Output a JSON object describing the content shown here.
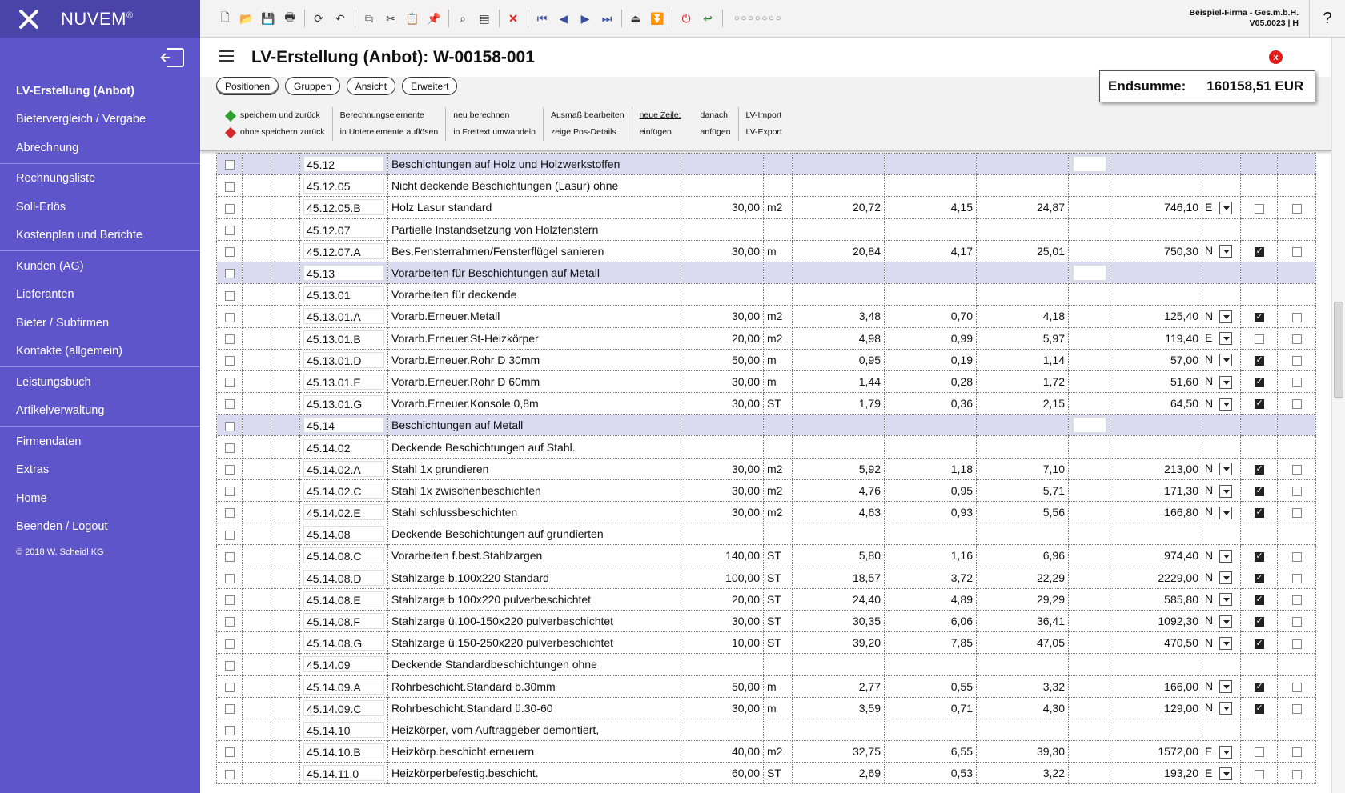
{
  "brand": {
    "name": "NUVEM",
    "reg": "®"
  },
  "sidebar": {
    "items": [
      {
        "label": "LV-Erstellung (Anbot)",
        "active": true
      },
      {
        "label": "Bietervergleich / Vergabe"
      },
      {
        "label": "Abrechnung"
      },
      {
        "sep": true
      },
      {
        "label": "Rechnungsliste"
      },
      {
        "label": "Soll-Erlös"
      },
      {
        "label": "Kostenplan und Berichte"
      },
      {
        "sep": true
      },
      {
        "label": "Kunden (AG)"
      },
      {
        "label": "Lieferanten"
      },
      {
        "label": "Bieter / Subfirmen"
      },
      {
        "label": "Kontakte (allgemein)"
      },
      {
        "sep": true
      },
      {
        "label": "Leistungsbuch"
      },
      {
        "label": "Artikelverwaltung"
      },
      {
        "sep": true
      },
      {
        "label": "Firmendaten"
      },
      {
        "label": "Extras"
      },
      {
        "label": "Home"
      },
      {
        "label": "Beenden / Logout"
      }
    ],
    "copyright": "© 2018 W. Scheidl KG"
  },
  "topbar": {
    "company": "Beispiel-Firma - Ges.m.b.H.",
    "version": "V05.0023 | H",
    "help": "?"
  },
  "header": {
    "title": "LV-Erstellung (Anbot): W-00158-001",
    "close": "x"
  },
  "tabs": [
    "Positionen",
    "Gruppen",
    "Ansicht",
    "Erweitert"
  ],
  "actions": {
    "save_back": "speichern und zurück",
    "nosave_back": "ohne speichern zurück",
    "calc1": "Berechnungselemente",
    "calc2": "in Unterelemente auflösen",
    "re1": "neu berechnen",
    "re2": "in Freitext umwandeln",
    "am1": "Ausmaß bearbeiten",
    "am2": "zeige Pos-Details",
    "nz": "neue Zeile:",
    "nz2": "einfügen",
    "da1": "danach",
    "da2": "anfügen",
    "imp": "LV-Import",
    "exp": "LV-Export",
    "green": "#2ca02c",
    "red": "#d62728"
  },
  "endsum": {
    "label": "Endsumme:",
    "value": "160158,51 EUR"
  },
  "rows": [
    {
      "oz": "45.12",
      "text": "Beschichtungen auf Holz und Holzwerkstoffen",
      "group": true
    },
    {
      "oz": "45.12.05",
      "text": "Nicht deckende Beschichtungen (Lasur) ohne"
    },
    {
      "oz": "45.12.05.B",
      "text": "Holz Lasur standard",
      "qty": "30,00",
      "unit": "m2",
      "p1": "20,72",
      "p2": "4,15",
      "ep": "24,87",
      "gp": "746,10",
      "typ": "E",
      "c1": false
    },
    {
      "oz": "45.12.07",
      "text": "Partielle Instandsetzung von Holzfenstern"
    },
    {
      "oz": "45.12.07.A",
      "text": "Bes.Fensterrahmen/Fensterflügel sanieren",
      "qty": "30,00",
      "unit": "m",
      "p1": "20,84",
      "p2": "4,17",
      "ep": "25,01",
      "gp": "750,30",
      "typ": "N",
      "c1": true
    },
    {
      "oz": "45.13",
      "text": "Vorarbeiten für Beschichtungen auf Metall",
      "group": true
    },
    {
      "oz": "45.13.01",
      "text": "Vorarbeiten für deckende"
    },
    {
      "oz": "45.13.01.A",
      "text": "Vorarb.Erneuer.Metall",
      "qty": "30,00",
      "unit": "m2",
      "p1": "3,48",
      "p2": "0,70",
      "ep": "4,18",
      "gp": "125,40",
      "typ": "N",
      "c1": true
    },
    {
      "oz": "45.13.01.B",
      "text": "Vorarb.Erneuer.St-Heizkörper",
      "qty": "20,00",
      "unit": "m2",
      "p1": "4,98",
      "p2": "0,99",
      "ep": "5,97",
      "gp": "119,40",
      "typ": "E",
      "c1": false
    },
    {
      "oz": "45.13.01.D",
      "text": "Vorarb.Erneuer.Rohr D 30mm",
      "qty": "50,00",
      "unit": "m",
      "p1": "0,95",
      "p2": "0,19",
      "ep": "1,14",
      "gp": "57,00",
      "typ": "N",
      "c1": true
    },
    {
      "oz": "45.13.01.E",
      "text": "Vorarb.Erneuer.Rohr D 60mm",
      "qty": "30,00",
      "unit": "m",
      "p1": "1,44",
      "p2": "0,28",
      "ep": "1,72",
      "gp": "51,60",
      "typ": "N",
      "c1": true
    },
    {
      "oz": "45.13.01.G",
      "text": "Vorarb.Erneuer.Konsole 0,8m",
      "qty": "30,00",
      "unit": "ST",
      "p1": "1,79",
      "p2": "0,36",
      "ep": "2,15",
      "gp": "64,50",
      "typ": "N",
      "c1": true
    },
    {
      "oz": "45.14",
      "text": "Beschichtungen auf Metall",
      "group": true
    },
    {
      "oz": "45.14.02",
      "text": "Deckende Beschichtungen auf Stahl."
    },
    {
      "oz": "45.14.02.A",
      "text": "Stahl 1x grundieren",
      "qty": "30,00",
      "unit": "m2",
      "p1": "5,92",
      "p2": "1,18",
      "ep": "7,10",
      "gp": "213,00",
      "typ": "N",
      "c1": true
    },
    {
      "oz": "45.14.02.C",
      "text": "Stahl 1x zwischenbeschichten",
      "qty": "30,00",
      "unit": "m2",
      "p1": "4,76",
      "p2": "0,95",
      "ep": "5,71",
      "gp": "171,30",
      "typ": "N",
      "c1": true
    },
    {
      "oz": "45.14.02.E",
      "text": "Stahl schlussbeschichten",
      "qty": "30,00",
      "unit": "m2",
      "p1": "4,63",
      "p2": "0,93",
      "ep": "5,56",
      "gp": "166,80",
      "typ": "N",
      "c1": true
    },
    {
      "oz": "45.14.08",
      "text": "Deckende Beschichtungen auf grundierten"
    },
    {
      "oz": "45.14.08.C",
      "text": "Vorarbeiten f.best.Stahlzargen",
      "qty": "140,00",
      "unit": "ST",
      "p1": "5,80",
      "p2": "1,16",
      "ep": "6,96",
      "gp": "974,40",
      "typ": "N",
      "c1": true
    },
    {
      "oz": "45.14.08.D",
      "text": "Stahlzarge b.100x220 Standard",
      "qty": "100,00",
      "unit": "ST",
      "p1": "18,57",
      "p2": "3,72",
      "ep": "22,29",
      "gp": "2229,00",
      "typ": "N",
      "c1": true
    },
    {
      "oz": "45.14.08.E",
      "text": "Stahlzarge b.100x220 pulverbeschichtet",
      "qty": "20,00",
      "unit": "ST",
      "p1": "24,40",
      "p2": "4,89",
      "ep": "29,29",
      "gp": "585,80",
      "typ": "N",
      "c1": true
    },
    {
      "oz": "45.14.08.F",
      "text": "Stahlzarge ü.100-150x220 pulverbeschichtet",
      "qty": "30,00",
      "unit": "ST",
      "p1": "30,35",
      "p2": "6,06",
      "ep": "36,41",
      "gp": "1092,30",
      "typ": "N",
      "c1": true
    },
    {
      "oz": "45.14.08.G",
      "text": "Stahlzarge ü.150-250x220 pulverbeschichtet",
      "qty": "10,00",
      "unit": "ST",
      "p1": "39,20",
      "p2": "7,85",
      "ep": "47,05",
      "gp": "470,50",
      "typ": "N",
      "c1": true
    },
    {
      "oz": "45.14.09",
      "text": "Deckende Standardbeschichtungen ohne"
    },
    {
      "oz": "45.14.09.A",
      "text": "Rohrbeschicht.Standard b.30mm",
      "qty": "50,00",
      "unit": "m",
      "p1": "2,77",
      "p2": "0,55",
      "ep": "3,32",
      "gp": "166,00",
      "typ": "N",
      "c1": true
    },
    {
      "oz": "45.14.09.C",
      "text": "Rohrbeschicht.Standard ü.30-60",
      "qty": "30,00",
      "unit": "m",
      "p1": "3,59",
      "p2": "0,71",
      "ep": "4,30",
      "gp": "129,00",
      "typ": "N",
      "c1": true
    },
    {
      "oz": "45.14.10",
      "text": "Heizkörper, vom Auftraggeber demontiert,"
    },
    {
      "oz": "45.14.10.B",
      "text": "Heizkörp.beschicht.erneuern",
      "qty": "40,00",
      "unit": "m2",
      "p1": "32,75",
      "p2": "6,55",
      "ep": "39,30",
      "gp": "1572,00",
      "typ": "E",
      "c1": false
    },
    {
      "oz": "45.14.11.0",
      "text": "Heizkörperbefestig.beschicht.",
      "qty": "60,00",
      "unit": "ST",
      "p1": "2,69",
      "p2": "0,53",
      "ep": "3,22",
      "gp": "193,20",
      "typ": "E",
      "c1": false
    }
  ]
}
